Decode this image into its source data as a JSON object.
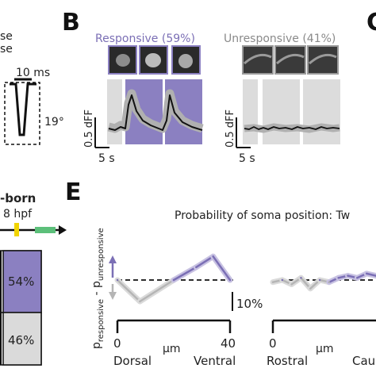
{
  "panels": {
    "b": "B",
    "c": "C",
    "e": "E"
  },
  "left": {
    "lines": [
      "se",
      "se"
    ],
    "scale_time": "10 ms",
    "angle": "19°",
    "born_label": "-born",
    "hpf_label": "8 hpf",
    "bar_labels": [
      "54%",
      "46%"
    ]
  },
  "panel_b": {
    "responsive_label": "Responsive (59%)",
    "unresponsive_label": "Unresponsive (41%)",
    "scale_dff": "0.5 dFF",
    "scale_time": "5 s"
  },
  "panel_e": {
    "title": "Probability of soma position: Tw",
    "ylabel_main": "p",
    "ylabel_sub1": "responsive",
    "ylabel_mid": " - p",
    "ylabel_sub2": "unresponsive",
    "scale": "10%",
    "left_axis": {
      "tick0": "0",
      "tick1": "40",
      "unit": "µm",
      "end0": "Dorsal",
      "end1": "Ventral"
    },
    "right_axis": {
      "tick0": "0",
      "unit": "µm",
      "end0": "Rostral",
      "end1": "Cau"
    }
  },
  "colors": {
    "purple": "#7b6fb5",
    "purple_light": "#9d92c9",
    "gray": "#b5b5b5",
    "panel_gray": "#dcdcdc"
  },
  "chart_data": [
    {
      "type": "line",
      "title": "Probability of soma position: Tw",
      "xlabel": "µm",
      "x_range": [
        0,
        40
      ],
      "x_ends": [
        "Dorsal",
        "Ventral"
      ],
      "x": [
        0,
        8,
        20,
        28,
        34,
        40
      ],
      "values": [
        0.0,
        -0.1,
        0.0,
        0.06,
        0.11,
        0.0
      ],
      "unit": "fraction"
    },
    {
      "type": "line",
      "xlabel": "µm",
      "x_ends": [
        "Rostral",
        "Cau"
      ],
      "x": [
        0,
        3,
        6,
        9,
        12,
        15,
        18,
        21,
        24,
        27,
        30,
        33
      ],
      "values": [
        -0.01,
        0.0,
        -0.02,
        0.01,
        -0.04,
        0.0,
        -0.01,
        0.01,
        0.02,
        0.01,
        0.03,
        0.02
      ],
      "unit": "fraction"
    }
  ]
}
